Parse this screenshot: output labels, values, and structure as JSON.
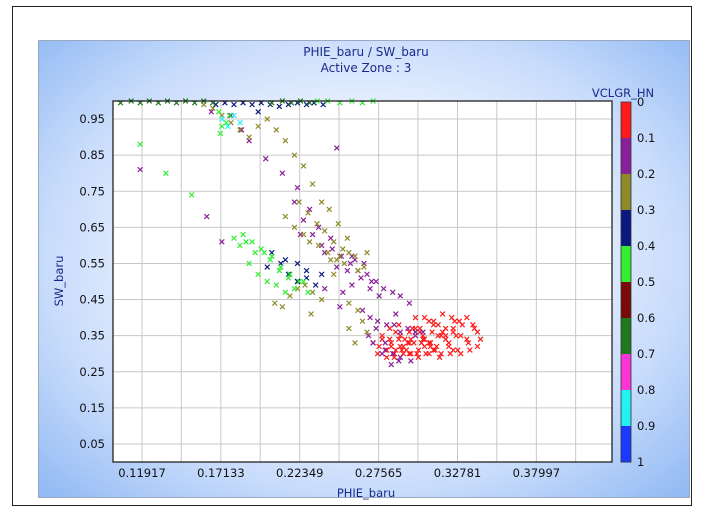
{
  "chart_data": {
    "type": "scatter",
    "title": "PHIE_baru / SW_baru",
    "subtitle": "Active Zone : 3",
    "xlabel": "PHIE_baru",
    "ylabel": "SW_baru",
    "xlim": [
      0.1,
      0.43
    ],
    "ylim": [
      0.0,
      1.0
    ],
    "x_ticks": [
      "0.11917",
      "0.17133",
      "0.22349",
      "0.27565",
      "0.32781",
      "0.37997"
    ],
    "y_ticks": [
      "0.95",
      "0.85",
      "0.75",
      "0.65",
      "0.55",
      "0.45",
      "0.35",
      "0.25",
      "0.15",
      "0.05"
    ],
    "grid": true,
    "marker": "x",
    "colorbar": {
      "label": "VCLGR_HN",
      "ticks": [
        "0",
        "0.1",
        "0.2",
        "0.3",
        "0.4",
        "0.5",
        "0.6",
        "0.7",
        "0.8",
        "0.9",
        "1"
      ],
      "colors": [
        "#ff1a1a",
        "#8a1f9a",
        "#8f8a28",
        "#0a1880",
        "#33ee33",
        "#7a0a0a",
        "#1f7a1f",
        "#ff33d6",
        "#22f2f2",
        "#1a3aff"
      ]
    },
    "series": [
      {
        "color": "#ff1a1a",
        "x": [
          0.272,
          0.278,
          0.284,
          0.29,
          0.295,
          0.3,
          0.305,
          0.31,
          0.315,
          0.32,
          0.325,
          0.33,
          0.287,
          0.292,
          0.297,
          0.302,
          0.307,
          0.312,
          0.317,
          0.322,
          0.283,
          0.289,
          0.296,
          0.303,
          0.309,
          0.315,
          0.32,
          0.326,
          0.331,
          0.3,
          0.306,
          0.312,
          0.318,
          0.324,
          0.329,
          0.334,
          0.338,
          0.341,
          0.343,
          0.341,
          0.336,
          0.33,
          0.323,
          0.316,
          0.309,
          0.302,
          0.296,
          0.291,
          0.286,
          0.281,
          0.276,
          0.293,
          0.305,
          0.318,
          0.3,
          0.312,
          0.325,
          0.287,
          0.299,
          0.31,
          0.322,
          0.334,
          0.294,
          0.306,
          0.317,
          0.328,
          0.278,
          0.284,
          0.29,
          0.297,
          0.303,
          0.309,
          0.32,
          0.314,
          0.301,
          0.286,
          0.289,
          0.298,
          0.311,
          0.327,
          0.339,
          0.335,
          0.325,
          0.313,
          0.306,
          0.296,
          0.283,
          0.275,
          0.281,
          0.292,
          0.304
        ],
        "y": [
          0.33,
          0.34,
          0.32,
          0.35,
          0.33,
          0.36,
          0.34,
          0.33,
          0.35,
          0.34,
          0.36,
          0.35,
          0.31,
          0.3,
          0.3,
          0.31,
          0.3,
          0.31,
          0.3,
          0.32,
          0.37,
          0.38,
          0.36,
          0.37,
          0.39,
          0.38,
          0.37,
          0.39,
          0.38,
          0.4,
          0.4,
          0.39,
          0.41,
          0.4,
          0.39,
          0.4,
          0.38,
          0.36,
          0.34,
          0.32,
          0.31,
          0.3,
          0.3,
          0.29,
          0.3,
          0.29,
          0.3,
          0.31,
          0.3,
          0.31,
          0.32,
          0.34,
          0.35,
          0.36,
          0.37,
          0.38,
          0.37,
          0.36,
          0.33,
          0.32,
          0.33,
          0.34,
          0.31,
          0.34,
          0.35,
          0.31,
          0.35,
          0.33,
          0.32,
          0.34,
          0.36,
          0.33,
          0.35,
          0.32,
          0.3,
          0.29,
          0.34,
          0.37,
          0.36,
          0.35,
          0.37,
          0.33,
          0.31,
          0.31,
          0.32,
          0.33,
          0.34,
          0.3,
          0.29,
          0.32,
          0.33
        ]
      },
      {
        "color": "#8a1f9a",
        "x": [
          0.165,
          0.178,
          0.185,
          0.19,
          0.201,
          0.212,
          0.22,
          0.226,
          0.232,
          0.238,
          0.245,
          0.251,
          0.257,
          0.262,
          0.268,
          0.274,
          0.279,
          0.285,
          0.29,
          0.296,
          0.24,
          0.248,
          0.255,
          0.26,
          0.266,
          0.271,
          0.252,
          0.258,
          0.264,
          0.27,
          0.276,
          0.265,
          0.27,
          0.275,
          0.281,
          0.287,
          0.29,
          0.295,
          0.3,
          0.305,
          0.272,
          0.28,
          0.285,
          0.29,
          0.297,
          0.278,
          0.284,
          0.289,
          0.3,
          0.248,
          0.222,
          0.23,
          0.224,
          0.24,
          0.25,
          0.118,
          0.162,
          0.172,
          0.236,
          0.244,
          0.258,
          0.286,
          0.274,
          0.269,
          0.28
        ],
        "y": [
          0.97,
          0.96,
          0.92,
          0.89,
          0.84,
          0.8,
          0.72,
          0.67,
          0.63,
          0.6,
          0.59,
          0.57,
          0.55,
          0.53,
          0.52,
          0.5,
          0.48,
          0.47,
          0.46,
          0.44,
          0.58,
          0.54,
          0.53,
          0.56,
          0.55,
          0.5,
          0.47,
          0.49,
          0.51,
          0.48,
          0.46,
          0.42,
          0.4,
          0.39,
          0.38,
          0.41,
          0.36,
          0.37,
          0.35,
          0.36,
          0.33,
          0.31,
          0.3,
          0.29,
          0.28,
          0.3,
          0.27,
          0.28,
          0.36,
          0.87,
          0.76,
          0.7,
          0.63,
          0.48,
          0.43,
          0.81,
          0.68,
          0.61,
          0.65,
          0.62,
          0.57,
          0.38,
          0.37,
          0.35,
          0.33
        ]
      },
      {
        "color": "#8f8a28",
        "x": [
          0.16,
          0.166,
          0.172,
          0.178,
          0.184,
          0.19,
          0.196,
          0.202,
          0.208,
          0.214,
          0.22,
          0.226,
          0.232,
          0.238,
          0.243,
          0.249,
          0.255,
          0.26,
          0.266,
          0.214,
          0.22,
          0.226,
          0.23,
          0.236,
          0.242,
          0.248,
          0.253,
          0.223,
          0.229,
          0.235,
          0.24,
          0.246,
          0.252,
          0.217,
          0.222,
          0.227,
          0.232,
          0.238,
          0.244,
          0.25,
          0.256,
          0.262,
          0.268,
          0.207,
          0.212,
          0.217,
          0.222,
          0.231,
          0.246,
          0.256,
          0.262,
          0.268,
          0.265,
          0.26,
          0.256
        ],
        "y": [
          0.99,
          0.98,
          0.96,
          0.94,
          0.92,
          0.9,
          0.93,
          0.95,
          0.92,
          0.89,
          0.85,
          0.82,
          0.77,
          0.72,
          0.7,
          0.66,
          0.62,
          0.57,
          0.54,
          0.68,
          0.65,
          0.63,
          0.61,
          0.6,
          0.58,
          0.56,
          0.55,
          0.72,
          0.69,
          0.66,
          0.64,
          0.61,
          0.59,
          0.52,
          0.5,
          0.49,
          0.47,
          0.45,
          0.56,
          0.57,
          0.58,
          0.53,
          0.58,
          0.44,
          0.43,
          0.46,
          0.48,
          0.41,
          0.52,
          0.44,
          0.42,
          0.36,
          0.39,
          0.33,
          0.37
        ]
      },
      {
        "color": "#0a1880",
        "x": [
          0.168,
          0.174,
          0.18,
          0.186,
          0.192,
          0.198,
          0.204,
          0.21,
          0.216,
          0.222,
          0.228,
          0.233,
          0.239,
          0.196,
          0.205,
          0.211,
          0.216,
          0.222,
          0.228,
          0.202,
          0.214,
          0.222,
          0.228,
          0.234,
          0.238
        ],
        "y": [
          0.99,
          0.995,
          0.99,
          0.995,
          0.99,
          0.995,
          0.99,
          0.985,
          0.99,
          0.995,
          0.99,
          0.995,
          0.99,
          0.97,
          0.58,
          0.55,
          0.52,
          0.5,
          0.53,
          0.54,
          0.56,
          0.55,
          0.51,
          0.49,
          0.52
        ]
      },
      {
        "color": "#33ee33",
        "x": [
          0.118,
          0.135,
          0.152,
          0.17,
          0.172,
          0.186,
          0.192,
          0.198,
          0.204,
          0.21,
          0.216,
          0.19,
          0.196,
          0.202,
          0.208,
          0.214,
          0.22,
          0.226,
          0.2,
          0.205,
          0.211,
          0.217,
          0.223,
          0.229,
          0.18,
          0.184,
          0.188,
          0.194,
          0.175,
          0.171,
          0.177,
          0.235,
          0.242,
          0.25,
          0.258,
          0.265,
          0.272
        ],
        "y": [
          0.88,
          0.8,
          0.74,
          0.97,
          0.93,
          0.63,
          0.61,
          0.59,
          0.56,
          0.53,
          0.51,
          0.55,
          0.52,
          0.5,
          0.49,
          0.47,
          0.48,
          0.5,
          0.58,
          0.57,
          0.54,
          0.52,
          0.5,
          0.47,
          0.62,
          0.6,
          0.61,
          0.58,
          0.94,
          0.91,
          0.96,
          1.0,
          1.0,
          0.995,
          1.0,
          0.995,
          1.0
        ]
      },
      {
        "color": "#1f7a1f",
        "x": [
          0.105,
          0.112,
          0.118,
          0.124,
          0.13,
          0.136,
          0.142,
          0.148,
          0.154,
          0.16,
          0.166,
          0.205,
          0.212,
          0.218,
          0.224,
          0.23
        ],
        "y": [
          0.995,
          1.0,
          0.995,
          1.0,
          0.995,
          1.0,
          0.995,
          1.0,
          0.995,
          1.0,
          0.995,
          0.995,
          1.0,
          0.995,
          1.0,
          0.995
        ]
      },
      {
        "color": "#22f2f2",
        "x": [
          0.172,
          0.176,
          0.18,
          0.184
        ],
        "y": [
          0.95,
          0.93,
          0.96,
          0.94
        ]
      }
    ]
  }
}
